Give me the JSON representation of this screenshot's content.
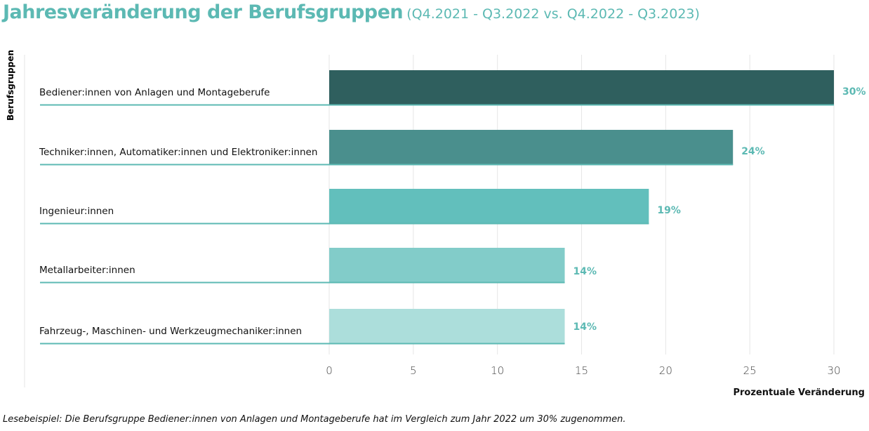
{
  "title": "Jahresveränderung der Berufsgruppen",
  "subtitle": "(Q4.2021 - Q3.2022 vs. Q4.2022 - Q3.2023)",
  "note": "Lesebeispiel: Die Berufsgruppe Bediener:innen von Anlagen und Montageberufe hat im Vergleich zum Jahr 2022 um 30% zugenommen.",
  "chart_data": {
    "type": "bar",
    "orientation": "horizontal",
    "title": "Jahresveränderung der Berufsgruppen",
    "xlabel": "Prozentuale Veränderung",
    "ylabel": "Berufsgruppen",
    "xlim": [
      0,
      30
    ],
    "xticks": [
      0,
      5,
      10,
      15,
      20,
      25,
      30
    ],
    "grid": true,
    "categories": [
      "Bediener:innen von Anlagen und Montageberufe",
      "Techniker:innen, Automatiker:innen und Elektroniker:innen",
      "Ingenieur:innen",
      "Metallarbeiter:innen",
      "Fahrzeug-, Maschinen- und Werkzeugmechaniker:innen"
    ],
    "values": [
      30,
      24,
      19,
      14,
      14
    ],
    "data_labels": [
      "30%",
      "24%",
      "19%",
      "14%",
      "14%"
    ],
    "colors": [
      "#2f5f5e",
      "#4a8f8d",
      "#62bfbc",
      "#82ccc9",
      "#acdedb"
    ],
    "label_color": "#5cb9b3"
  }
}
